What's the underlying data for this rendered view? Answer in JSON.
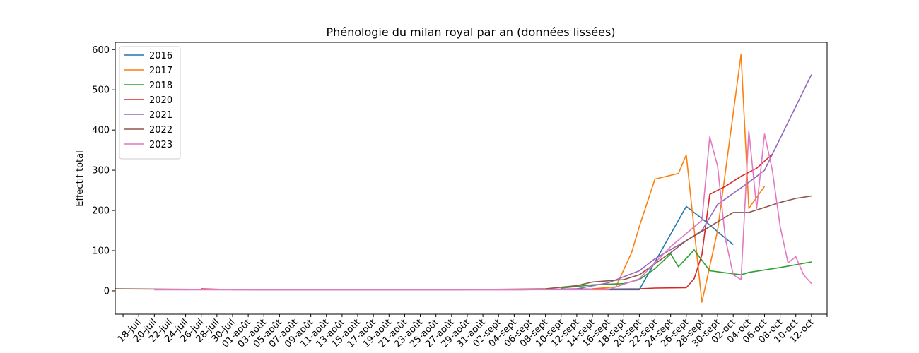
{
  "chart_data": {
    "type": "line",
    "title": "Phénologie du milan royal par an (données lissées)",
    "xlabel": "",
    "ylabel": "Effectif total",
    "x_axis": "date",
    "xlim": [
      "15-juil",
      "14-oct"
    ],
    "ylim": [
      -58,
      618
    ],
    "y_ticks": [
      0,
      100,
      200,
      300,
      400,
      500,
      600
    ],
    "x_ticks": [
      "18-juil",
      "20-juil",
      "22-juil",
      "24-juil",
      "26-juil",
      "28-juil",
      "30-juil",
      "01-août",
      "03-août",
      "05-août",
      "07-août",
      "09-août",
      "11-août",
      "13-août",
      "15-août",
      "17-août",
      "19-août",
      "21-août",
      "23-août",
      "25-août",
      "27-août",
      "29-août",
      "31-août",
      "02-sept",
      "04-sept",
      "06-sept",
      "08-sept",
      "10-sept",
      "12-sept",
      "14-sept",
      "16-sept",
      "18-sept",
      "20-sept",
      "22-sept",
      "24-sept",
      "26-sept",
      "28-sept",
      "30-sept",
      "02-oct",
      "04-oct",
      "06-oct",
      "08-oct",
      "10-oct",
      "12-oct"
    ],
    "grid": false,
    "legend_position": "top-left",
    "series": [
      {
        "name": "2016",
        "color": "#1f77b4",
        "points": [
          [
            "12-sept",
            5
          ],
          [
            "16-sept",
            3
          ],
          [
            "20-sept",
            3
          ],
          [
            "26-sept",
            210
          ],
          [
            "28-sept",
            180
          ],
          [
            "02-oct",
            115
          ]
        ]
      },
      {
        "name": "2017",
        "color": "#ff7f0e",
        "points": [
          [
            "14-sept",
            5
          ],
          [
            "17-sept",
            10
          ],
          [
            "19-sept",
            95
          ],
          [
            "20-sept",
            160
          ],
          [
            "22-sept",
            278
          ],
          [
            "25-sept",
            292
          ],
          [
            "26-sept",
            338
          ],
          [
            "28-sept",
            -28
          ],
          [
            "30-sept",
            150
          ],
          [
            "03-oct",
            588
          ],
          [
            "04-oct",
            205
          ],
          [
            "06-oct",
            260
          ]
        ]
      },
      {
        "name": "2018",
        "color": "#2ca02c",
        "points": [
          [
            "10-sept",
            7
          ],
          [
            "14-sept",
            15
          ],
          [
            "18-sept",
            18
          ],
          [
            "20-sept",
            28
          ],
          [
            "22-sept",
            55
          ],
          [
            "24-sept",
            92
          ],
          [
            "25-sept",
            60
          ],
          [
            "27-sept",
            102
          ],
          [
            "29-sept",
            50
          ],
          [
            "03-oct",
            40
          ],
          [
            "04-oct",
            46
          ],
          [
            "08-oct",
            58
          ],
          [
            "12-oct",
            72
          ]
        ]
      },
      {
        "name": "2020",
        "color": "#d62728",
        "points": [
          [
            "26-juil",
            5
          ],
          [
            "30-juil",
            3
          ],
          [
            "05-sept",
            3
          ],
          [
            "20-sept",
            5
          ],
          [
            "22-sept",
            7
          ],
          [
            "26-sept",
            8
          ],
          [
            "27-sept",
            30
          ],
          [
            "28-sept",
            90
          ],
          [
            "29-sept",
            240
          ],
          [
            "01-oct",
            260
          ],
          [
            "03-oct",
            285
          ],
          [
            "05-oct",
            305
          ],
          [
            "07-oct",
            340
          ]
        ]
      },
      {
        "name": "2021",
        "color": "#9467bd",
        "points": [
          [
            "20-juil",
            3
          ],
          [
            "05-sept",
            3
          ],
          [
            "12-sept",
            5
          ],
          [
            "16-sept",
            20
          ],
          [
            "18-sept",
            35
          ],
          [
            "20-sept",
            50
          ],
          [
            "22-sept",
            80
          ],
          [
            "26-sept",
            125
          ],
          [
            "28-sept",
            150
          ],
          [
            "30-sept",
            215
          ],
          [
            "04-oct",
            270
          ],
          [
            "06-oct",
            300
          ],
          [
            "12-oct",
            538
          ]
        ]
      },
      {
        "name": "2022",
        "color": "#8c564b",
        "points": [
          [
            "15-juil",
            5
          ],
          [
            "02-août",
            3
          ],
          [
            "28-août",
            3
          ],
          [
            "08-sept",
            5
          ],
          [
            "12-sept",
            13
          ],
          [
            "14-sept",
            22
          ],
          [
            "18-sept",
            28
          ],
          [
            "20-sept",
            40
          ],
          [
            "24-sept",
            95
          ],
          [
            "26-sept",
            125
          ],
          [
            "28-sept",
            148
          ],
          [
            "02-oct",
            195
          ],
          [
            "04-oct",
            195
          ],
          [
            "08-oct",
            220
          ],
          [
            "10-oct",
            230
          ],
          [
            "12-oct",
            236
          ]
        ]
      },
      {
        "name": "2023",
        "color": "#e377c2",
        "points": [
          [
            "20-juil",
            3
          ],
          [
            "16-sept",
            3
          ],
          [
            "20-sept",
            30
          ],
          [
            "24-sept",
            110
          ],
          [
            "28-sept",
            175
          ],
          [
            "29-sept",
            383
          ],
          [
            "30-sept",
            310
          ],
          [
            "01-oct",
            130
          ],
          [
            "02-oct",
            40
          ],
          [
            "03-oct",
            28
          ],
          [
            "04-oct",
            398
          ],
          [
            "05-oct",
            205
          ],
          [
            "06-oct",
            390
          ],
          [
            "07-oct",
            300
          ],
          [
            "08-oct",
            160
          ],
          [
            "09-oct",
            70
          ],
          [
            "10-oct",
            85
          ],
          [
            "11-oct",
            40
          ],
          [
            "12-oct",
            18
          ]
        ]
      }
    ]
  }
}
